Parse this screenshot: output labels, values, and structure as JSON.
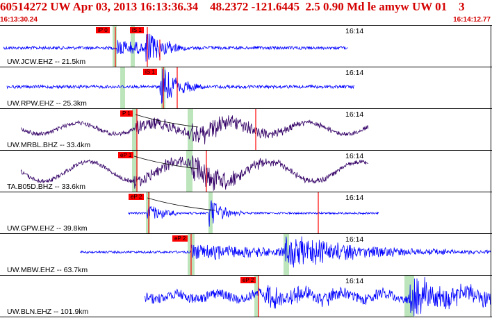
{
  "header": {
    "title": "60514272 UW Apr 03, 2013 16:13:36.34    48.2372 -121.6445  2.5 0.90 Md le amyw UW 01    3",
    "start_time": "16:13:30.24",
    "end_time": "16:14:12.77"
  },
  "colors": {
    "header_text": "#d40000",
    "trace_blue": "#0000ff",
    "trace_purple": "#330066",
    "pick": "#ff0000",
    "window": "#b0e0b0"
  },
  "traces": [
    {
      "station": "UW.JCW.EHZ -- 21.5km",
      "time_label": "16:14",
      "picks": [
        "iP 0",
        "iS 1"
      ],
      "color": "blue"
    },
    {
      "station": "UW.RPW.EHZ -- 25.3km",
      "time_label": "16:14",
      "picks": [
        "iS 1"
      ],
      "color": "blue"
    },
    {
      "station": "UW.MRBL.BHZ -- 33.4km",
      "time_label": "16:14",
      "picks": [
        "P 1"
      ],
      "color": "purple"
    },
    {
      "station": "TA.B05D.BHZ -- 33.6km",
      "time_label": "16:14",
      "picks": [
        "eP 1"
      ],
      "color": "purple"
    },
    {
      "station": "UW.GPW.EHZ -- 39.8km",
      "time_label": "16:14",
      "picks": [
        "eP 2"
      ],
      "color": "blue"
    },
    {
      "station": "UW.MBW.EHZ -- 63.7km",
      "time_label": "16:14",
      "picks": [
        "eP 2"
      ],
      "color": "blue"
    },
    {
      "station": "UW.BLN.EHZ -- 101.9km",
      "time_label": "16:14",
      "picks": [
        "eP 2"
      ],
      "color": "blue"
    }
  ]
}
